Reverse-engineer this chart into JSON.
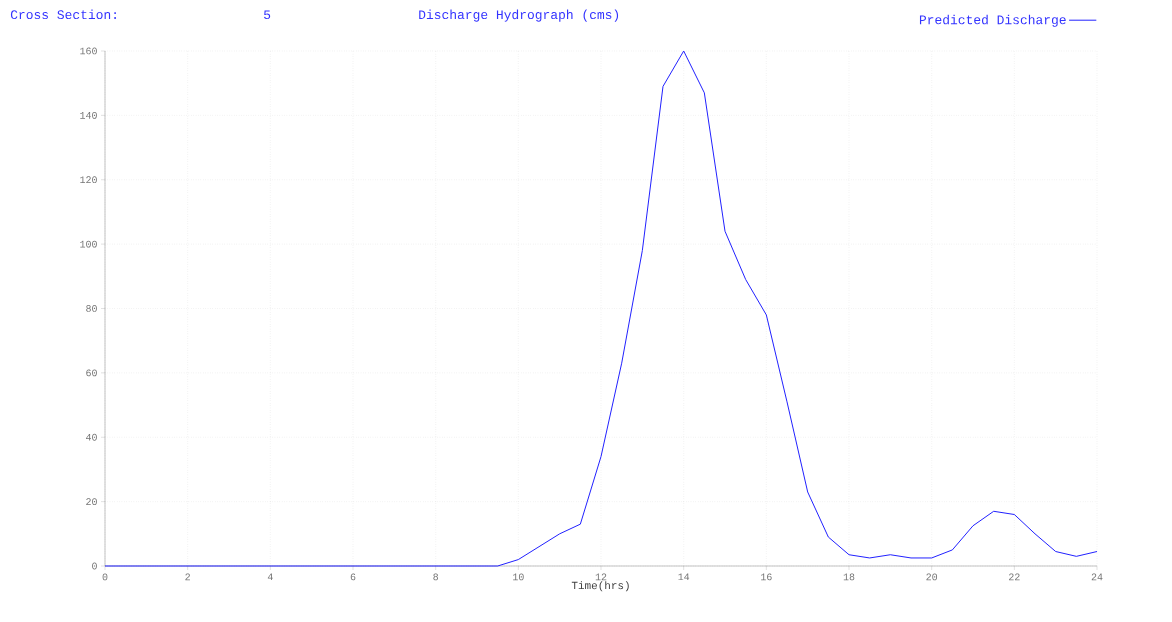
{
  "chart_data": {
    "type": "line",
    "title": "Discharge Hydrograph (cms)",
    "annotations": [
      "Cross Section:",
      "5"
    ],
    "xlabel": "Time(hrs)",
    "x": [
      0,
      0.5,
      1,
      1.5,
      2,
      2.5,
      3,
      3.5,
      4,
      4.5,
      5,
      5.5,
      6,
      6.5,
      7,
      7.5,
      8,
      8.5,
      9,
      9.5,
      10,
      10.5,
      11,
      11.5,
      12,
      12.5,
      13,
      13.5,
      14,
      14.5,
      15,
      15.5,
      16,
      16.5,
      17,
      17.5,
      18,
      18.5,
      19,
      19.5,
      20,
      20.5,
      21,
      21.5,
      22,
      22.5,
      23,
      23.5,
      24
    ],
    "series": [
      {
        "name": "Predicted Discharge",
        "color": "#2020ff",
        "values": [
          0,
          0,
          0,
          0,
          0,
          0,
          0,
          0,
          0,
          0,
          0,
          0,
          0,
          0,
          0,
          0,
          0,
          0,
          0,
          0,
          2,
          6,
          10,
          13,
          34,
          63,
          98,
          149,
          160,
          147,
          104,
          89,
          78,
          51,
          23,
          9,
          3.5,
          2.5,
          3.5,
          2.5,
          2.5,
          5,
          12.5,
          17,
          16,
          10,
          4.5,
          3,
          4.5
        ]
      }
    ],
    "xlim": [
      0,
      24
    ],
    "ylim": [
      0,
      160
    ],
    "xticks": [
      0,
      2,
      4,
      6,
      8,
      10,
      12,
      14,
      16,
      18,
      20,
      22,
      24
    ],
    "yticks": [
      0,
      20,
      40,
      60,
      80,
      100,
      120,
      140,
      160
    ],
    "grid": true,
    "legend": "top right",
    "marker": "none",
    "line_style": "solid"
  }
}
